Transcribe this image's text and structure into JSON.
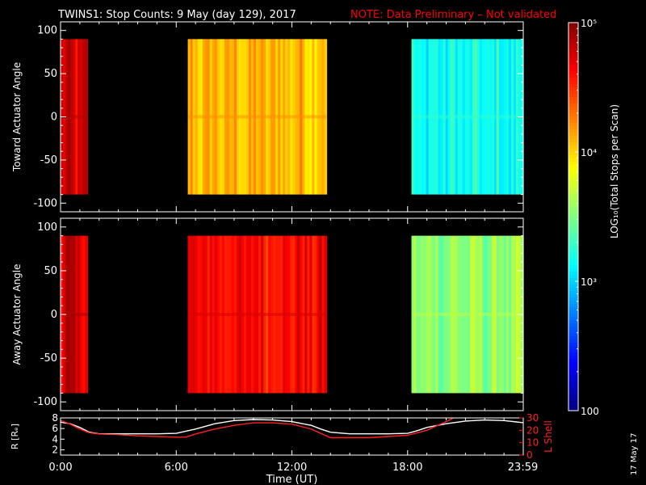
{
  "title": {
    "main": "TWINS1: Stop Counts:  9 May (day 129), 2017",
    "note": "NOTE: Data Preliminary – Not validated"
  },
  "colors": {
    "background": "#000000",
    "axes": "#ffffff",
    "note": "#ff0000",
    "r_line": "#ffffff",
    "lshell_line": "#ff2020"
  },
  "chart_data": [
    {
      "type": "heatmap",
      "name": "toward",
      "ylabel": "Toward Actuator Angle",
      "ylim": [
        -110,
        110
      ],
      "yticks": [
        100,
        50,
        0,
        -50,
        -100
      ],
      "xlim": [
        0,
        24
      ],
      "angle_range": [
        -90,
        90
      ],
      "segments": [
        {
          "start": 0.0,
          "end": 1.4,
          "log_level": 4.72
        },
        {
          "start": 6.6,
          "end": 13.8,
          "log_level": 4.08
        },
        {
          "start": 18.2,
          "end": 24.0,
          "log_level": 3.15
        }
      ]
    },
    {
      "type": "heatmap",
      "name": "away",
      "ylabel": "Away Actuator Angle",
      "ylim": [
        -110,
        110
      ],
      "yticks": [
        100,
        50,
        0,
        -50,
        -100
      ],
      "xlim": [
        0,
        24
      ],
      "angle_range": [
        -90,
        90
      ],
      "segments": [
        {
          "start": 0.0,
          "end": 1.4,
          "log_level": 4.75
        },
        {
          "start": 6.6,
          "end": 13.8,
          "log_level": 4.62
        },
        {
          "start": 18.2,
          "end": 24.0,
          "log_level": 3.55
        }
      ]
    },
    {
      "type": "line",
      "name": "orbit",
      "ylabel_left": "R [Rₑ]",
      "ylabel_right": "L Shell",
      "xlabel": "Time (UT)",
      "xticks": [
        "0:00",
        "6:00",
        "12:00",
        "18:00",
        "23:59"
      ],
      "xtick_values": [
        0,
        6,
        12,
        18,
        23.98
      ],
      "ylim_left": [
        1,
        8
      ],
      "ylim_right": [
        0,
        30
      ],
      "yticks_left": [
        8,
        6,
        4,
        2
      ],
      "yticks_right": [
        30,
        20,
        10,
        0
      ],
      "series": [
        {
          "name": "R",
          "axis": "left",
          "x": [
            0,
            0.5,
            1,
            1.5,
            2,
            3,
            4,
            5,
            6,
            7,
            8,
            9,
            10,
            11,
            12,
            13,
            13.5,
            14,
            15,
            16,
            17,
            18,
            18.5,
            19,
            20,
            21,
            22,
            23,
            24
          ],
          "y": [
            7.2,
            6.9,
            6.2,
            5.3,
            5.0,
            5.0,
            5.0,
            5.0,
            5.1,
            5.9,
            6.9,
            7.5,
            7.7,
            7.6,
            7.3,
            6.6,
            5.9,
            5.3,
            5.0,
            5.0,
            5.0,
            5.1,
            5.6,
            6.2,
            6.9,
            7.4,
            7.6,
            7.5,
            7.1
          ]
        },
        {
          "name": "L Shell",
          "axis": "right",
          "x": [
            0,
            0.5,
            1,
            1.5,
            2,
            3,
            4,
            5,
            6,
            6.5,
            7,
            8,
            9,
            10,
            11,
            12,
            13,
            14,
            15,
            16,
            17,
            18,
            18.5,
            19,
            20,
            20.5
          ],
          "y": [
            28,
            25,
            21,
            18,
            17,
            16.5,
            15.5,
            15,
            14.5,
            14.5,
            17,
            21,
            24,
            26,
            26,
            25,
            21,
            14,
            14,
            14,
            15,
            16,
            18,
            20,
            27,
            31
          ]
        }
      ]
    }
  ],
  "colorbar": {
    "label": "LOG₁₀(Total Stops per Scan)",
    "min_log": 2,
    "max_log": 5,
    "ticks": [
      {
        "log": 5,
        "text": "10⁵"
      },
      {
        "log": 4,
        "text": "10⁴"
      },
      {
        "log": 3,
        "text": "10³"
      },
      {
        "log": 2,
        "text": "100"
      }
    ]
  },
  "footer": {
    "date_stamp": "17 May 17"
  }
}
